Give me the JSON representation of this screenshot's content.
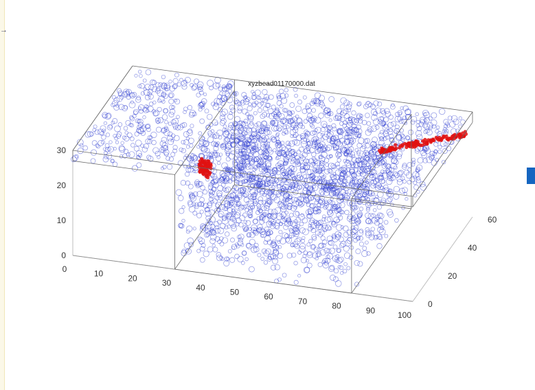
{
  "ui": {
    "accent_color": "#1565c0"
  },
  "chart_data": {
    "type": "scatter",
    "projection": "3d",
    "title": "xyzbead01170000.dat",
    "grid": false,
    "x_axis": {
      "ticks": [
        "0",
        "10",
        "20",
        "30",
        "40",
        "50",
        "60",
        "70",
        "80",
        "90",
        "100"
      ],
      "lim": [
        0,
        100
      ]
    },
    "y_axis": {
      "ticks": [
        "0",
        "20",
        "40",
        "60"
      ],
      "lim": [
        0,
        60
      ]
    },
    "z_axis": {
      "ticks": [
        "0",
        "10",
        "20",
        "30"
      ],
      "lim": [
        0,
        30
      ]
    },
    "domain_outline": {
      "description_free": true,
      "step_x": 30,
      "lower_x_range": [
        30,
        82
      ],
      "lower_z_top": 30,
      "upper_z_range": [
        27,
        30
      ]
    },
    "series": [
      {
        "color": "#2b3bd0",
        "marker": "o",
        "values": []
      },
      {
        "color": "#e01010",
        "marker": "o",
        "values": []
      }
    ]
  }
}
